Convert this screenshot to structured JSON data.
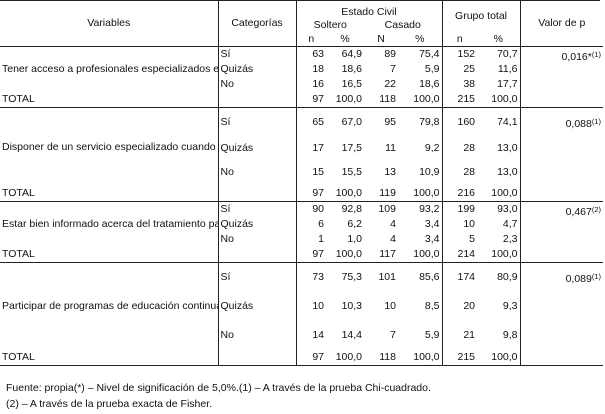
{
  "header": {
    "variables": "Variables",
    "categorias": "Categorías",
    "estado_civil": "Estado Civil",
    "soltero": "Soltero",
    "casado": "Casado",
    "grupo_total": "Grupo total",
    "valor_p": "Valor de p",
    "sub": [
      "n",
      "%",
      "N",
      "%",
      "n",
      "%"
    ]
  },
  "blocks": [
    {
      "variable": "Tener acceso a profesionales especializados en el cuidado de pacientes portadores del VIH",
      "p_value": "0,016*",
      "p_note": "(1)",
      "rows": [
        {
          "cat": "Sí",
          "sn": "63",
          "sp": "64,9",
          "cn": "89",
          "cp": "75,4",
          "tn": "152",
          "tp": "70,7"
        },
        {
          "cat": "Quizás",
          "sn": "18",
          "sp": "18,6",
          "cn": "7",
          "cp": "5,9",
          "tn": "25",
          "tp": "11,6"
        },
        {
          "cat": "No",
          "sn": "16",
          "sp": "16,5",
          "cn": "22",
          "cp": "18,6",
          "tn": "38",
          "tp": "17,7"
        }
      ],
      "total": {
        "label": "TOTAL",
        "sn": "97",
        "sp": "100,0",
        "cn": "118",
        "cp": "100,0",
        "tn": "215",
        "tp": "100,0"
      }
    },
    {
      "variable": "Disponer de un servicio especializado cuando va a atender a pacientes portadores del VIH",
      "p_value": "0,088",
      "p_note": "(1)",
      "rows": [
        {
          "cat": "Sí",
          "sn": "65",
          "sp": "67,0",
          "cn": "95",
          "cp": "79,8",
          "tn": "160",
          "tp": "74,1"
        },
        {
          "cat": "Quizás",
          "sn": "17",
          "sp": "17,5",
          "cn": "11",
          "cp": "9,2",
          "tn": "28",
          "tp": "13,0"
        },
        {
          "cat": "No",
          "sn": "15",
          "sp": "15,5",
          "cn": "13",
          "cp": "10,9",
          "tn": "28",
          "tp": "13,0"
        }
      ],
      "total": {
        "label": "TOTAL",
        "sn": "97",
        "sp": "100,0",
        "cn": "119",
        "cp": "100,0",
        "tn": "216",
        "tp": "100,0"
      }
    },
    {
      "variable": "Estar bien informado acerca del tratamiento para pacientes portadores del VIH",
      "p_value": "0,467",
      "p_note": "(2)",
      "rows": [
        {
          "cat": "Sí",
          "sn": "90",
          "sp": "92,8",
          "cn": "109",
          "cp": "93,2",
          "tn": "199",
          "tp": "93,0"
        },
        {
          "cat": "Quizás",
          "sn": "6",
          "sp": "6,2",
          "cn": "4",
          "cp": "3,4",
          "tn": "10",
          "tp": "4,7"
        },
        {
          "cat": "No",
          "sn": "1",
          "sp": "1,0",
          "cn": "4",
          "cp": "3,4",
          "tn": "5",
          "tp": "2,3"
        }
      ],
      "total": {
        "label": "TOTAL",
        "sn": "97",
        "sp": "100,0",
        "cn": "117",
        "cp": "100,0",
        "tn": "214",
        "tp": "100,0"
      }
    },
    {
      "variable": "Participar de programas de educación continuade asistencia apacientesportadores del VIH,impartidos porprofesionales del área de la salud",
      "p_value": "0,089",
      "p_note": "(1)",
      "rows": [
        {
          "cat": "Sí",
          "sn": "73",
          "sp": "75,3",
          "cn": "101",
          "cp": "85,6",
          "tn": "174",
          "tp": "80,9"
        },
        {
          "cat": "Quizás",
          "sn": "10",
          "sp": "10,3",
          "cn": "10",
          "cp": "8,5",
          "tn": "20",
          "tp": "9,3"
        },
        {
          "cat": "No",
          "sn": "14",
          "sp": "14,4",
          "cn": "7",
          "cp": "5,9",
          "tn": "21",
          "tp": "9,8"
        }
      ],
      "total": {
        "label": "TOTAL",
        "sn": "97",
        "sp": "100,0",
        "cn": "118",
        "cp": "100,0",
        "tn": "215",
        "tp": "100,0"
      }
    }
  ],
  "footnotes": {
    "line1": "Fuente: propia(*) – Nivel de significación de 5,0%.(1) – A través de la prueba Chi-cuadrado.",
    "line2": "(2) – A través de la prueba exacta de Fisher."
  }
}
